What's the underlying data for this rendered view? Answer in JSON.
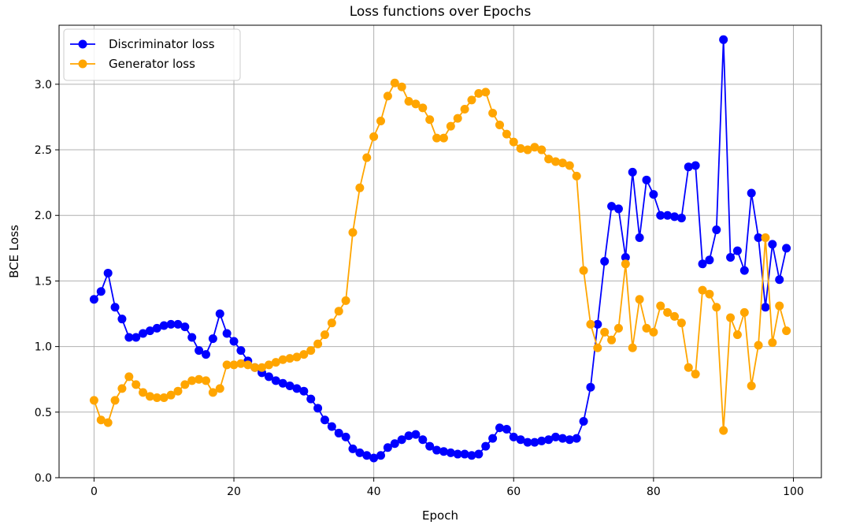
{
  "chart_data": {
    "type": "line",
    "title": "Loss functions over Epochs",
    "xlabel": "Epoch",
    "ylabel": "BCE Loss",
    "xlim": [
      -5,
      104
    ],
    "ylim": [
      0,
      3.45
    ],
    "xticks": [
      0,
      20,
      40,
      60,
      80,
      100
    ],
    "yticks": [
      0.0,
      0.5,
      1.0,
      1.5,
      2.0,
      2.5,
      3.0
    ],
    "xtick_labels": [
      "0",
      "20",
      "40",
      "60",
      "80",
      "100"
    ],
    "ytick_labels": [
      "0.0",
      "0.5",
      "1.0",
      "1.5",
      "2.0",
      "2.5",
      "3.0"
    ],
    "grid": true,
    "legend_position": "top-left",
    "series": [
      {
        "name": "Discriminator loss",
        "color": "#0000ff",
        "values": [
          1.36,
          1.42,
          1.56,
          1.3,
          1.21,
          1.07,
          1.07,
          1.1,
          1.12,
          1.14,
          1.16,
          1.17,
          1.17,
          1.15,
          1.07,
          0.97,
          0.94,
          1.06,
          1.25,
          1.1,
          1.04,
          0.97,
          0.89,
          0.84,
          0.8,
          0.77,
          0.74,
          0.72,
          0.7,
          0.68,
          0.66,
          0.6,
          0.53,
          0.44,
          0.39,
          0.34,
          0.31,
          0.22,
          0.19,
          0.17,
          0.15,
          0.17,
          0.23,
          0.26,
          0.29,
          0.32,
          0.33,
          0.29,
          0.24,
          0.21,
          0.2,
          0.19,
          0.18,
          0.18,
          0.17,
          0.18,
          0.24,
          0.3,
          0.38,
          0.37,
          0.31,
          0.29,
          0.27,
          0.27,
          0.28,
          0.29,
          0.31,
          0.3,
          0.29,
          0.3,
          0.43,
          0.69,
          1.17,
          1.65,
          2.07,
          2.05,
          1.68,
          2.33,
          1.83,
          2.27,
          2.16,
          2.0,
          2.0,
          1.99,
          1.98,
          2.37,
          2.38,
          1.63,
          1.66,
          1.89,
          3.34,
          1.68,
          1.73,
          1.58,
          2.17,
          1.83,
          1.3,
          1.78,
          1.51,
          1.75
        ]
      },
      {
        "name": "Generator loss",
        "color": "#ffa500",
        "values": [
          0.59,
          0.44,
          0.42,
          0.59,
          0.68,
          0.77,
          0.71,
          0.65,
          0.62,
          0.61,
          0.61,
          0.63,
          0.66,
          0.71,
          0.74,
          0.75,
          0.74,
          0.65,
          0.68,
          0.86,
          0.86,
          0.87,
          0.86,
          0.84,
          0.84,
          0.86,
          0.88,
          0.9,
          0.91,
          0.92,
          0.94,
          0.97,
          1.02,
          1.09,
          1.18,
          1.27,
          1.35,
          1.87,
          2.21,
          2.44,
          2.6,
          2.72,
          2.91,
          3.01,
          2.98,
          2.87,
          2.85,
          2.82,
          2.73,
          2.59,
          2.59,
          2.68,
          2.74,
          2.81,
          2.88,
          2.93,
          2.94,
          2.78,
          2.69,
          2.62,
          2.56,
          2.51,
          2.5,
          2.52,
          2.5,
          2.43,
          2.41,
          2.4,
          2.38,
          2.3,
          1.58,
          1.17,
          0.99,
          1.11,
          1.05,
          1.14,
          1.63,
          0.99,
          1.36,
          1.14,
          1.11,
          1.31,
          1.26,
          1.23,
          1.18,
          0.84,
          0.79,
          1.43,
          1.4,
          1.3,
          0.36,
          1.22,
          1.09,
          1.26,
          0.7,
          1.01,
          1.83,
          1.03,
          1.31,
          1.12
        ]
      }
    ]
  }
}
